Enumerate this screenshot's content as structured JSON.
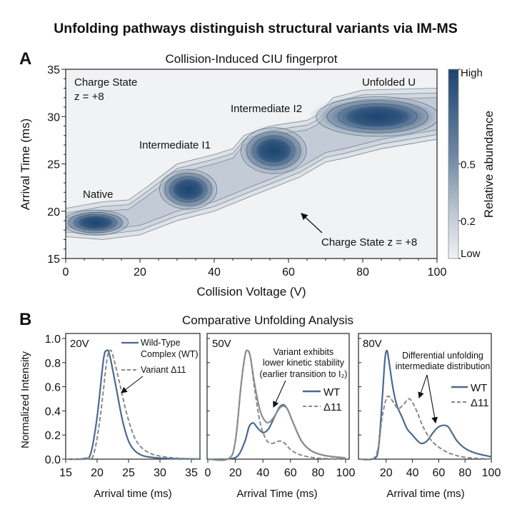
{
  "figure": {
    "title": "Unfolding pathways distinguish structural variants via IM-MS",
    "panel_a_letter": "A",
    "panel_b_letter": "B",
    "panel_b_title": "Comparative Unfolding Analysis"
  },
  "chart_data": [
    {
      "type": "heatmap",
      "title": "Collision-Induced CIU fingerprot",
      "xlabel": "Collision Voltage (V)",
      "ylabel": "Arrival Time (ms)",
      "xlim": [
        0,
        100
      ],
      "ylim": [
        15,
        35
      ],
      "xticks": [
        "0",
        "20",
        "40",
        "60",
        "80",
        "100"
      ],
      "yticks": [
        "15",
        "20",
        "25",
        "30",
        "35"
      ],
      "colorbar": {
        "label": "Relative abundance",
        "ticks": [
          "High",
          "0.5",
          "0.2",
          "Low"
        ],
        "tick_values": [
          1,
          0.5,
          0.2,
          0
        ],
        "color_high": "#1d4470",
        "color_low": "#f0f1f3"
      },
      "features": [
        {
          "label": "Native",
          "voltage": 8,
          "arrival_time": 18.8,
          "voltage_spread": 8,
          "time_spread": 1.2
        },
        {
          "label": "Intermediate I1",
          "voltage": 33,
          "arrival_time": 22.3,
          "voltage_spread": 7,
          "time_spread": 1.9
        },
        {
          "label": "Intermediate I2",
          "voltage": 56,
          "arrival_time": 26.4,
          "voltage_spread": 8,
          "time_spread": 2.2
        },
        {
          "label": "Unfolded U",
          "voltage": 84,
          "arrival_time": 30,
          "voltage_spread": 15,
          "time_spread": 1.9
        }
      ],
      "envelope_upper": [
        [
          0,
          20.3
        ],
        [
          10,
          21
        ],
        [
          17,
          21.2
        ],
        [
          22,
          22.6
        ],
        [
          30,
          25
        ],
        [
          40,
          26
        ],
        [
          45,
          26.6
        ],
        [
          48,
          28
        ],
        [
          55,
          29
        ],
        [
          65,
          29.6
        ],
        [
          68,
          30.2
        ],
        [
          72,
          32
        ],
        [
          80,
          32.8
        ],
        [
          100,
          33
        ]
      ],
      "envelope_lower": [
        [
          0,
          17.3
        ],
        [
          10,
          17
        ],
        [
          20,
          17.5
        ],
        [
          30,
          19
        ],
        [
          40,
          20
        ],
        [
          50,
          21.6
        ],
        [
          63,
          23.6
        ],
        [
          70,
          25.2
        ],
        [
          75,
          25.6
        ],
        [
          85,
          26.6
        ],
        [
          100,
          27.6
        ]
      ],
      "annotations": [
        "Charge State",
        "z = +8",
        "Charge State z = +8"
      ]
    },
    {
      "type": "line",
      "panel_label": "20V",
      "xlabel": "Arrival time (ms)",
      "ylabel": "Normalized Intensity",
      "xlim": [
        15,
        36.5
      ],
      "ylim": [
        0,
        1.0
      ],
      "xticks": [
        "15",
        "20",
        "25",
        "30",
        "35"
      ],
      "yticks": [
        "0.0",
        "0.2",
        "0.4",
        "0.6",
        "0.8",
        "1.0"
      ],
      "annotation": "",
      "series": [
        {
          "name": "Wild-Type Complex (WT)",
          "legend_lines": [
            "Wild-Type",
            "Complex (WT)"
          ],
          "style": "solid",
          "color": "#4a6a90",
          "x": [
            15,
            18,
            19,
            20,
            21,
            21.5,
            22,
            23,
            24,
            25,
            26,
            27,
            28,
            30,
            33,
            36.5
          ],
          "y": [
            0,
            0.005,
            0.05,
            0.35,
            0.82,
            0.9,
            0.86,
            0.6,
            0.33,
            0.15,
            0.07,
            0.035,
            0.02,
            0.008,
            0.003,
            0.001
          ]
        },
        {
          "name": "Variant Δ11",
          "legend_lines": [
            "Variant Δ11"
          ],
          "style": "dashed",
          "color": "#8a8a8a",
          "x": [
            15,
            18.5,
            19.5,
            20.5,
            21.5,
            22,
            22.5,
            23.5,
            24.5,
            25.5,
            26.5,
            28,
            30,
            33,
            36.5
          ],
          "y": [
            0,
            0.003,
            0.05,
            0.35,
            0.8,
            0.9,
            0.86,
            0.65,
            0.42,
            0.24,
            0.13,
            0.06,
            0.025,
            0.008,
            0.002
          ]
        }
      ]
    },
    {
      "type": "line",
      "panel_label": "50V",
      "xlabel": "Arrival Time (ms)",
      "xlim": [
        0,
        102
      ],
      "ylim": [
        0,
        1.0
      ],
      "xticks": [
        "0",
        "20",
        "40",
        "60",
        "80",
        "100"
      ],
      "annotation": [
        "Variant exhibits",
        "lower kinetic stability",
        "(earlier transition to I₂)"
      ],
      "series": [
        {
          "name": "WT",
          "style": "solid",
          "color": "#4a6a90",
          "x": [
            0,
            15,
            22,
            27,
            30,
            33,
            36,
            40,
            44,
            48,
            52,
            55,
            58,
            62,
            68,
            75,
            85,
            100
          ],
          "y": [
            0,
            0.002,
            0.03,
            0.15,
            0.27,
            0.3,
            0.26,
            0.22,
            0.25,
            0.34,
            0.43,
            0.45,
            0.41,
            0.3,
            0.15,
            0.07,
            0.03,
            0.01
          ]
        },
        {
          "style": "solid",
          "color": "#8f8f8f",
          "x": [
            0,
            15,
            20,
            24,
            27,
            29,
            31,
            34,
            38,
            42,
            45,
            48,
            52,
            55,
            58,
            62,
            68,
            75,
            85,
            100
          ],
          "y": [
            0,
            0.003,
            0.15,
            0.6,
            0.86,
            0.9,
            0.84,
            0.62,
            0.4,
            0.31,
            0.31,
            0.35,
            0.42,
            0.44,
            0.41,
            0.3,
            0.15,
            0.07,
            0.03,
            0.01
          ]
        },
        {
          "name": "Δ11",
          "style": "dashed",
          "color": "#8a8a8a",
          "x": [
            0,
            15,
            20,
            24,
            27,
            29,
            31,
            34,
            38,
            42,
            46,
            52,
            56,
            60,
            66,
            75,
            85,
            100
          ],
          "y": [
            0,
            0.003,
            0.15,
            0.6,
            0.86,
            0.9,
            0.84,
            0.58,
            0.3,
            0.17,
            0.13,
            0.15,
            0.13,
            0.08,
            0.04,
            0.015,
            0.005,
            0.002
          ]
        }
      ]
    },
    {
      "type": "line",
      "panel_label": "80V",
      "xlabel": "Arrival time (ms)",
      "xlim": [
        0,
        100
      ],
      "ylim": [
        0,
        1.0
      ],
      "xticks": [
        "20",
        "40",
        "60",
        "80",
        "100"
      ],
      "annotation": [
        "Differential unfolding",
        "intermediate distribution"
      ],
      "series": [
        {
          "name": "WT",
          "style": "solid",
          "color": "#4a6a90",
          "x": [
            0,
            10,
            14,
            17,
            19,
            20.5,
            22,
            25,
            28,
            32,
            36,
            40,
            44,
            47,
            51,
            55,
            59,
            63,
            67,
            70,
            74,
            80,
            88,
            100
          ],
          "y": [
            0,
            0.003,
            0.08,
            0.5,
            0.82,
            0.9,
            0.82,
            0.6,
            0.45,
            0.35,
            0.25,
            0.2,
            0.15,
            0.13,
            0.15,
            0.21,
            0.26,
            0.28,
            0.27,
            0.22,
            0.15,
            0.09,
            0.05,
            0.02
          ]
        },
        {
          "name": "Δ11",
          "style": "dashed",
          "color": "#8a8a8a",
          "x": [
            0,
            10,
            14,
            17,
            20,
            22,
            25,
            29,
            33,
            37,
            40,
            44,
            48,
            54,
            60,
            66,
            72,
            80,
            90,
            100
          ],
          "y": [
            0,
            0.003,
            0.1,
            0.35,
            0.5,
            0.52,
            0.48,
            0.42,
            0.45,
            0.5,
            0.47,
            0.38,
            0.27,
            0.16,
            0.1,
            0.06,
            0.035,
            0.015,
            0.006,
            0.002
          ]
        }
      ]
    }
  ]
}
